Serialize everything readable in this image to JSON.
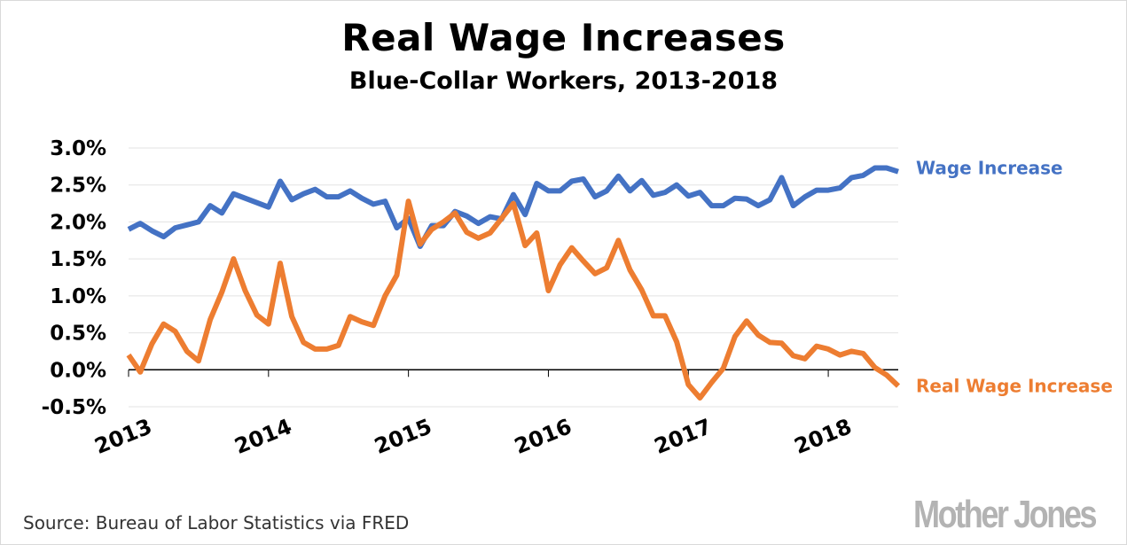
{
  "title": "Real Wage Increases",
  "subtitle": "Blue-Collar Workers, 2013-2018",
  "source": "Source: Bureau of Labor Statistics via FRED",
  "logo": "Mother Jones",
  "chart_data": {
    "type": "line",
    "title": "Real Wage Increases",
    "subtitle": "Blue-Collar Workers, 2013-2018",
    "xlabel": "",
    "ylabel": "",
    "ylim": [
      -0.5,
      3.0
    ],
    "xlim": [
      2013.0,
      2018.5
    ],
    "grid": true,
    "y_ticks": [
      {
        "value": 3.0,
        "label": "3.0%"
      },
      {
        "value": 2.5,
        "label": "2.5%"
      },
      {
        "value": 2.0,
        "label": "2.0%"
      },
      {
        "value": 1.5,
        "label": "1.5%"
      },
      {
        "value": 1.0,
        "label": "1.0%"
      },
      {
        "value": 0.5,
        "label": "0.5%"
      },
      {
        "value": 0.0,
        "label": "0.0%"
      },
      {
        "value": -0.5,
        "label": "-0.5%"
      }
    ],
    "x_ticks": [
      {
        "value": 2013,
        "label": "2013"
      },
      {
        "value": 2014,
        "label": "2014"
      },
      {
        "value": 2015,
        "label": "2015"
      },
      {
        "value": 2016,
        "label": "2016"
      },
      {
        "value": 2017,
        "label": "2017"
      },
      {
        "value": 2018,
        "label": "2018"
      }
    ],
    "series": [
      {
        "name": "Wage Increase",
        "color": "#4472c4",
        "label": "Wage Increase",
        "values": [
          1.9,
          1.98,
          1.88,
          1.8,
          1.92,
          1.96,
          2.0,
          2.22,
          2.12,
          2.38,
          2.32,
          2.26,
          2.2,
          2.55,
          2.3,
          2.38,
          2.44,
          2.34,
          2.34,
          2.42,
          2.32,
          2.24,
          2.28,
          1.92,
          2.05,
          1.67,
          1.95,
          1.95,
          2.14,
          2.08,
          1.98,
          2.07,
          2.04,
          2.37,
          2.1,
          2.52,
          2.42,
          2.42,
          2.55,
          2.58,
          2.34,
          2.42,
          2.62,
          2.42,
          2.56,
          2.36,
          2.4,
          2.5,
          2.35,
          2.4,
          2.22,
          2.22,
          2.32,
          2.31,
          2.22,
          2.3,
          2.6,
          2.22,
          2.34,
          2.43,
          2.43,
          2.46,
          2.6,
          2.63,
          2.73,
          2.73,
          2.68
        ]
      },
      {
        "name": "Real Wage Increase",
        "color": "#ed7d31",
        "label": "Real Wage Increase",
        "values": [
          0.2,
          -0.03,
          0.35,
          0.62,
          0.52,
          0.25,
          0.12,
          0.68,
          1.05,
          1.5,
          1.07,
          0.74,
          0.62,
          1.44,
          0.72,
          0.37,
          0.28,
          0.28,
          0.33,
          0.72,
          0.65,
          0.6,
          1.0,
          1.28,
          2.28,
          1.7,
          1.9,
          2.0,
          2.12,
          1.86,
          1.78,
          1.85,
          2.05,
          2.25,
          1.68,
          1.85,
          1.07,
          1.42,
          1.65,
          1.47,
          1.3,
          1.38,
          1.75,
          1.35,
          1.08,
          0.73,
          0.73,
          0.38,
          -0.2,
          -0.38,
          -0.17,
          0.02,
          0.45,
          0.66,
          0.47,
          0.37,
          0.36,
          0.19,
          0.15,
          0.32,
          0.28,
          0.2,
          0.25,
          0.22,
          0.03,
          -0.07,
          -0.22
        ]
      }
    ]
  }
}
